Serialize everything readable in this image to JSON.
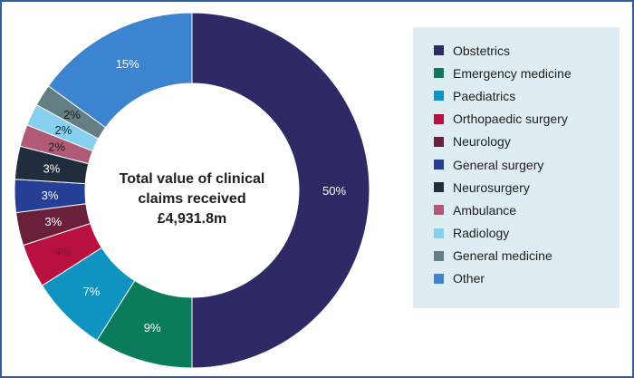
{
  "chart_data": {
    "type": "pie",
    "title": "",
    "center_label": [
      "Total value of clinical",
      "claims received £4,931.8m"
    ],
    "categories": [
      "Obstetrics",
      "Emergency medicine",
      "Paediatrics",
      "Orthopaedic surgery",
      "Neurology",
      "General surgery",
      "Neurosurgery",
      "Ambulance",
      "Radiology",
      "General medicine",
      "Other"
    ],
    "values": [
      50,
      9,
      7,
      4,
      3,
      3,
      3,
      2,
      2,
      2,
      15
    ],
    "value_labels": [
      "50%",
      "9%",
      "7%",
      "4%",
      "3%",
      "3%",
      "3%",
      "2%",
      "2%",
      "2%",
      "15%"
    ],
    "colors": [
      "#2e2a65",
      "#0a7c5c",
      "#0f93c0",
      "#b8103f",
      "#6a1f3a",
      "#243f95",
      "#1f2d3d",
      "#b05a78",
      "#85cfef",
      "#637e85",
      "#3c84cf"
    ],
    "label_colors": [
      "#ffffff",
      "#ffffff",
      "#ffffff",
      "#6a1f3a",
      "#ffffff",
      "#ffffff",
      "#ffffff",
      "#1e1e1e",
      "#1e1e1e",
      "#1e1e1e",
      "#ffffff"
    ],
    "legend_placement": "right"
  }
}
